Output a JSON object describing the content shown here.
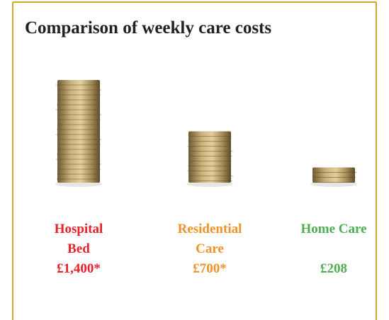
{
  "chart_data": {
    "type": "coin-stack",
    "title": "Comparison of weekly care costs",
    "categories": [
      "Hospital Bed",
      "Residential Care",
      "Home Care"
    ],
    "values": [
      1400,
      700,
      208
    ],
    "value_labels": [
      "£1,400*",
      "£700*",
      "£208"
    ],
    "colors": [
      "#e8212b",
      "#f0922b",
      "#4cae4f"
    ]
  }
}
